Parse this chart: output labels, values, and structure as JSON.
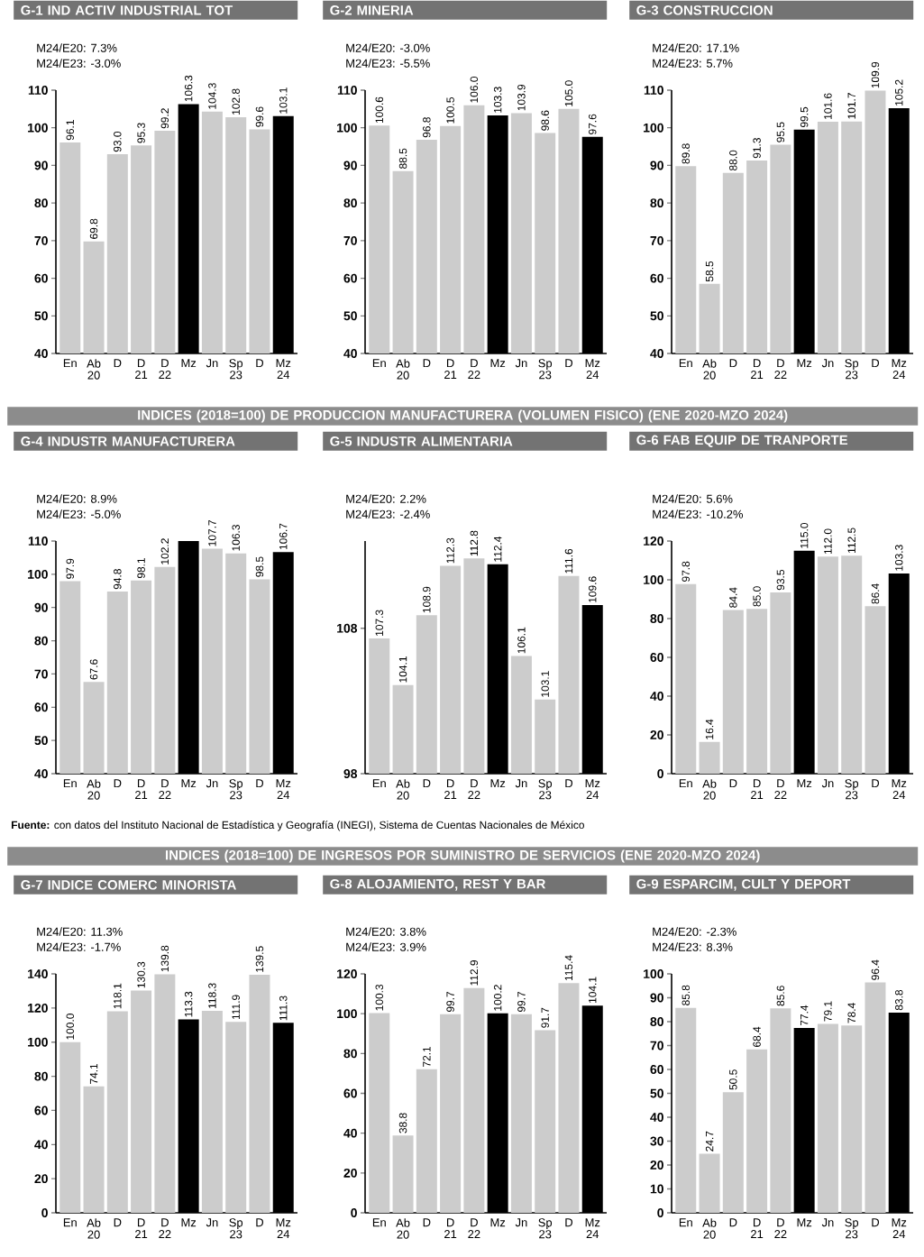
{
  "chart_data": [
    {
      "type": "bar",
      "title": "G-1 IND ACTIV INDUSTRIAL TOT",
      "annotations": [
        "M24/E20: 7.3%",
        "M24/E23: -3.0%"
      ],
      "categories": [
        "En",
        "Ab 20",
        "D",
        "D 21",
        "D 22",
        "Mz",
        "Jn",
        "Sp 23",
        "D",
        "Mz 24"
      ],
      "values": [
        96.1,
        69.8,
        93.0,
        95.3,
        99.2,
        106.3,
        104.3,
        102.8,
        99.6,
        103.1
      ],
      "value_labels": [
        "96.1",
        "69.8",
        "93.0",
        "95.3",
        "99.2",
        "106.3",
        "104.3",
        "102.8",
        "99.6",
        "103.1"
      ],
      "colors": [
        "#cccccc",
        "#cccccc",
        "#cccccc",
        "#cccccc",
        "#cccccc",
        "#000000",
        "#cccccc",
        "#cccccc",
        "#cccccc",
        "#000000"
      ],
      "ylim": [
        40,
        110
      ],
      "yticks": [
        40,
        50,
        60,
        70,
        80,
        90,
        100,
        110
      ]
    },
    {
      "type": "bar",
      "title": "G-2 MINERIA",
      "annotations": [
        "M24/E20: -3.0%",
        "M24/E23: -5.5%"
      ],
      "categories": [
        "En",
        "Ab 20",
        "D",
        "D 21",
        "D 22",
        "Mz",
        "Jn",
        "Sp 23",
        "D",
        "Mz 24"
      ],
      "values": [
        100.6,
        88.5,
        96.8,
        100.5,
        106.0,
        103.3,
        103.9,
        98.6,
        105.0,
        97.6
      ],
      "value_labels": [
        "100.6",
        "88.5",
        "96.8",
        "100.5",
        "106.0",
        "103.3",
        "103.9",
        "98.6",
        "105.0",
        "97.6"
      ],
      "colors": [
        "#cccccc",
        "#cccccc",
        "#cccccc",
        "#cccccc",
        "#cccccc",
        "#000000",
        "#cccccc",
        "#cccccc",
        "#cccccc",
        "#000000"
      ],
      "ylim": [
        40,
        110
      ],
      "yticks": [
        40,
        50,
        60,
        70,
        80,
        90,
        100,
        110
      ]
    },
    {
      "type": "bar",
      "title": "G-3 CONSTRUCCION",
      "annotations": [
        "M24/E20: 17.1%",
        "M24/E23: 5.7%"
      ],
      "categories": [
        "En",
        "Ab 20",
        "D",
        "D 21",
        "D 22",
        "Mz",
        "Jn",
        "Sp 23",
        "D",
        "Mz 24"
      ],
      "values": [
        89.8,
        58.5,
        88.0,
        91.3,
        95.5,
        99.5,
        101.6,
        101.7,
        109.9,
        105.2
      ],
      "value_labels": [
        "89.8",
        "58.5",
        "88.0",
        "91.3",
        "95.5",
        "99.5",
        "101.6",
        "101.7",
        "109.9",
        "105.2"
      ],
      "colors": [
        "#cccccc",
        "#cccccc",
        "#cccccc",
        "#cccccc",
        "#cccccc",
        "#000000",
        "#cccccc",
        "#cccccc",
        "#cccccc",
        "#000000"
      ],
      "ylim": [
        40,
        110
      ],
      "yticks": [
        40,
        50,
        60,
        70,
        80,
        90,
        100,
        110
      ]
    },
    {
      "type": "bar",
      "title": "G-4 INDUSTR MANUFACTURERA",
      "subtitle": "INDICES (2018=100) DE PRODUCCION MANUFACTURERA (VOLUMEN FISICO) (ENE 2020-MZO 2024)",
      "annotations": [
        "M24/E20: 8.9%",
        "M24/E23: -5.0%",
        "**Fuente:** con datos del Instituto Nacional de Estadística y Geografía (INEGI), Sistema de Cuentas Nacionales de México"
      ],
      "categories": [
        "En",
        "Ab 20",
        "D",
        "D 21",
        "D 22",
        "Mz",
        "Jn",
        "Sp 23",
        "D",
        "Mz 24"
      ],
      "values": [
        97.9,
        67.6,
        94.8,
        98.1,
        102.2,
        110,
        107.7,
        106.3,
        98.5,
        106.7
      ],
      "value_labels": [
        "97.9",
        "67.6",
        "94.8",
        "98.1",
        "102.2",
        null,
        "107.7",
        "106.3",
        "98.5",
        "106.7"
      ],
      "colors": [
        "#cccccc",
        "#cccccc",
        "#cccccc",
        "#cccccc",
        "#cccccc",
        "#000000",
        "#cccccc",
        "#cccccc",
        "#cccccc",
        "#000000"
      ],
      "ylim": [
        40,
        110
      ],
      "yticks": [
        40,
        50,
        60,
        70,
        80,
        90,
        100,
        110
      ]
    },
    {
      "type": "bar",
      "title": "G-5  INDUSTR ALIMENTARIA",
      "annotations": [
        "M24/E20:  2.2%",
        "M24/E23: -2.4%"
      ],
      "categories": [
        "En",
        "Ab 20",
        "D",
        "D 21",
        "D 22",
        "Mz",
        "Jn",
        "Sp 23",
        "D",
        "Mz 24"
      ],
      "values": [
        107.3,
        104.1,
        108.9,
        112.3,
        112.8,
        112.4,
        106.1,
        103.1,
        111.6,
        109.6
      ],
      "value_labels": [
        "107.3",
        "104.1",
        "108.9",
        "112.3",
        "112.8",
        "112.4",
        "106.1",
        "103.1",
        "111.6",
        "109.6"
      ],
      "colors": [
        "#cccccc",
        "#cccccc",
        "#cccccc",
        "#cccccc",
        "#cccccc",
        "#000000",
        "#cccccc",
        "#cccccc",
        "#cccccc",
        "#000000"
      ],
      "ylim": [
        98,
        114
      ],
      "yticks": [
        98,
        108
      ]
    },
    {
      "type": "bar",
      "title": "G-6 FAB EQUIP DE TRANPORTE",
      "annotations": [
        "M24/E20:  5.6%",
        "M24/E23: -10.2%"
      ],
      "categories": [
        "En",
        "Ab 20",
        "D",
        "D 21",
        "D 22",
        "Mz",
        "Jn",
        "Sp 23",
        "D",
        "Mz 24"
      ],
      "values": [
        97.8,
        16.4,
        84.4,
        85.0,
        93.5,
        115.0,
        112.0,
        112.5,
        86.4,
        103.3
      ],
      "value_labels": [
        "97.8",
        "16.4",
        "84.4",
        "85.0",
        "93.5",
        "115.0",
        "112.0",
        "112.5",
        "86.4",
        "103.3"
      ],
      "colors": [
        "#cccccc",
        "#cccccc",
        "#cccccc",
        "#cccccc",
        "#cccccc",
        "#000000",
        "#cccccc",
        "#cccccc",
        "#cccccc",
        "#000000"
      ],
      "ylim": [
        0,
        120
      ],
      "yticks": [
        0,
        20,
        40,
        60,
        80,
        100,
        120
      ]
    },
    {
      "type": "bar",
      "title": "G-7 INDICE COMERC MINORISTA",
      "subtitle": "INDICES (2018=100) DE INGRESOS POR SUMINISTRO DE SERVICIOS (ENE 2020-MZO 2024)",
      "annotations": [
        "M24/E20:  11.3%",
        "M24/E23: -1.7%"
      ],
      "categories": [
        "En",
        "Ab 20",
        "D",
        "D 21",
        "D 22",
        "Mz",
        "Jn",
        "Sp 23",
        "D",
        "Mz 24"
      ],
      "values": [
        100.0,
        74.1,
        118.1,
        130.3,
        139.8,
        113.3,
        118.3,
        111.9,
        139.5,
        111.3
      ],
      "value_labels": [
        "100.0",
        "74.1",
        "118.1",
        "130.3",
        "139.8",
        "113.3",
        "118.3",
        "111.9",
        "139.5",
        "111.3"
      ],
      "colors": [
        "#cccccc",
        "#cccccc",
        "#cccccc",
        "#cccccc",
        "#cccccc",
        "#000000",
        "#cccccc",
        "#cccccc",
        "#cccccc",
        "#000000"
      ],
      "ylim": [
        0,
        140
      ],
      "yticks": [
        0,
        20,
        40,
        60,
        80,
        100,
        120,
        140
      ]
    },
    {
      "type": "bar",
      "title": "G-8  ALOJAMIENTO, REST Y BAR",
      "annotations": [
        "M24/E20: 3.8%",
        "M24/E23: 3.9%"
      ],
      "categories": [
        "En",
        "Ab 20",
        "D",
        "D 21",
        "D 22",
        "Mz",
        "Jn",
        "Sp 23",
        "D",
        "Mz 24"
      ],
      "values": [
        100.3,
        38.8,
        72.1,
        99.7,
        112.9,
        100.2,
        99.7,
        91.7,
        115.4,
        104.1
      ],
      "value_labels": [
        "100.3",
        "38.8",
        "72.1",
        "99.7",
        "112.9",
        "100.2",
        "99.7",
        "91.7",
        "115.4",
        "104.1"
      ],
      "colors": [
        "#cccccc",
        "#cccccc",
        "#cccccc",
        "#cccccc",
        "#cccccc",
        "#000000",
        "#cccccc",
        "#cccccc",
        "#cccccc",
        "#000000"
      ],
      "ylim": [
        0,
        120
      ],
      "yticks": [
        0,
        20,
        40,
        60,
        80,
        100,
        120
      ]
    },
    {
      "type": "bar",
      "title": "G-9 ESPARCIM, CULT Y DEPORT",
      "annotations": [
        "M24/E20: -2.3%",
        "M24/E23:  8.3%"
      ],
      "categories": [
        "En",
        "Ab 20",
        "D",
        "D 21",
        "D 22",
        "Mz",
        "Jn",
        "Sp 23",
        "D",
        "Mz 24"
      ],
      "values": [
        85.8,
        24.7,
        50.5,
        68.4,
        85.6,
        77.4,
        79.1,
        78.4,
        96.4,
        83.8
      ],
      "value_labels": [
        "85.8",
        "24.7",
        "50.5",
        "68.4",
        "85.6",
        "77.4",
        "79.1",
        "78.4",
        "96.4",
        "83.8"
      ],
      "colors": [
        "#cccccc",
        "#cccccc",
        "#cccccc",
        "#cccccc",
        "#cccccc",
        "#000000",
        "#cccccc",
        "#cccccc",
        "#cccccc",
        "#000000"
      ],
      "ylim": [
        0,
        100
      ],
      "yticks": [
        0,
        10,
        20,
        30,
        40,
        50,
        60,
        70,
        80,
        90,
        100
      ]
    }
  ]
}
